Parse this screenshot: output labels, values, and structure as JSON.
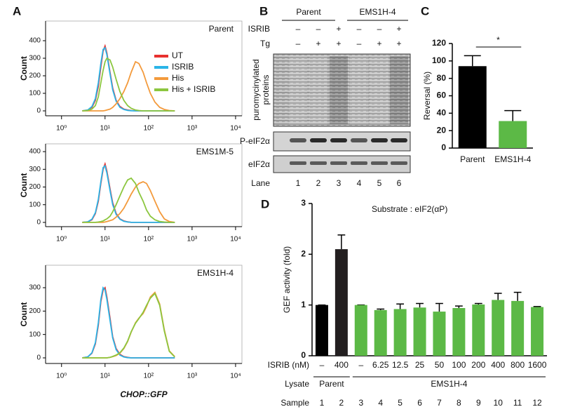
{
  "panels": [
    "A",
    "B",
    "C",
    "D"
  ],
  "chart_data": [
    {
      "type": "line",
      "title": "Parent",
      "ylabel": "Count",
      "xscale": "log",
      "legend": "upper right",
      "x": [
        3,
        4,
        5,
        6,
        7,
        8,
        9,
        10,
        11,
        13,
        15,
        18,
        22,
        27,
        33,
        40,
        50,
        60,
        75,
        90,
        110,
        140,
        180,
        230,
        300,
        400
      ],
      "xlim": [
        0.43,
        14000
      ],
      "xticks": [
        {
          "value": 1,
          "label": "10⁰"
        },
        {
          "value": 10,
          "label": "10¹"
        },
        {
          "value": 100,
          "label": "10²"
        },
        {
          "value": 1000,
          "label": "10³"
        },
        {
          "value": 10000,
          "label": "10⁴"
        }
      ],
      "ylim": [
        -28,
        512
      ],
      "yticks": [
        0,
        100,
        200,
        300,
        400
      ],
      "series": [
        {
          "name": "UT",
          "color": "#e8312f",
          "values": [
            0,
            5,
            20,
            60,
            140,
            250,
            340,
            370,
            330,
            220,
            130,
            60,
            25,
            10,
            5,
            2,
            0,
            0,
            0,
            0,
            0,
            0,
            0,
            0,
            0,
            0
          ]
        },
        {
          "name": "ISRIB",
          "color": "#2bb5e8",
          "values": [
            0,
            5,
            25,
            70,
            160,
            270,
            350,
            360,
            320,
            210,
            120,
            55,
            20,
            8,
            3,
            1,
            0,
            0,
            0,
            0,
            0,
            0,
            0,
            0,
            0,
            0
          ]
        },
        {
          "name": "His",
          "color": "#f39a3c",
          "values": [
            0,
            0,
            0,
            0,
            0,
            0,
            0,
            2,
            5,
            10,
            20,
            40,
            70,
            110,
            160,
            220,
            280,
            270,
            220,
            160,
            100,
            50,
            20,
            8,
            2,
            0
          ]
        },
        {
          "name": "His + ISRIB",
          "color": "#8cc63f",
          "values": [
            0,
            2,
            10,
            30,
            80,
            160,
            230,
            280,
            300,
            290,
            250,
            180,
            110,
            60,
            30,
            15,
            5,
            2,
            0,
            0,
            0,
            0,
            0,
            0,
            0,
            0
          ]
        }
      ]
    },
    {
      "type": "line",
      "title": "EMS1M-5",
      "ylabel": "Count",
      "xscale": "log",
      "x": [
        3,
        4,
        5,
        6,
        7,
        8,
        9,
        10,
        11,
        13,
        15,
        18,
        22,
        27,
        33,
        40,
        50,
        60,
        75,
        90,
        110,
        140,
        180,
        230,
        300,
        400
      ],
      "xlim": [
        0.43,
        14000
      ],
      "xticks": [
        {
          "value": 1,
          "label": "10⁰"
        },
        {
          "value": 10,
          "label": "10¹"
        },
        {
          "value": 100,
          "label": "10²"
        },
        {
          "value": 1000,
          "label": "10³"
        },
        {
          "value": 10000,
          "label": "10⁴"
        }
      ],
      "ylim": [
        -24,
        444
      ],
      "yticks": [
        0,
        100,
        200,
        300,
        400
      ],
      "series": [
        {
          "color": "#e8312f",
          "values": [
            0,
            3,
            15,
            50,
            120,
            220,
            300,
            330,
            290,
            190,
            110,
            50,
            20,
            8,
            3,
            0,
            0,
            0,
            0,
            0,
            0,
            0,
            0,
            0,
            0,
            0
          ]
        },
        {
          "color": "#2bb5e8",
          "values": [
            0,
            3,
            18,
            55,
            130,
            230,
            310,
            320,
            280,
            180,
            100,
            45,
            18,
            6,
            2,
            0,
            0,
            0,
            0,
            0,
            0,
            0,
            0,
            0,
            0,
            0
          ]
        },
        {
          "color": "#f39a3c",
          "values": [
            0,
            0,
            0,
            0,
            0,
            0,
            0,
            2,
            5,
            10,
            15,
            30,
            50,
            80,
            120,
            160,
            200,
            220,
            230,
            220,
            180,
            120,
            60,
            20,
            5,
            0
          ]
        },
        {
          "color": "#8cc63f",
          "values": [
            0,
            0,
            0,
            0,
            2,
            5,
            8,
            15,
            20,
            35,
            60,
            100,
            150,
            200,
            240,
            250,
            220,
            170,
            120,
            70,
            35,
            15,
            5,
            2,
            0,
            0
          ]
        }
      ]
    },
    {
      "type": "line",
      "title": "EMS1H-4",
      "ylabel": "Count",
      "xlabel": "CHOP::GFP",
      "xscale": "log",
      "x": [
        3,
        4,
        5,
        6,
        7,
        8,
        9,
        10,
        11,
        13,
        15,
        18,
        22,
        27,
        33,
        40,
        50,
        60,
        75,
        90,
        110,
        140,
        180,
        230,
        300,
        400
      ],
      "xlim": [
        0.43,
        14000
      ],
      "xticks": [
        {
          "value": 1,
          "label": "10⁰"
        },
        {
          "value": 10,
          "label": "10¹"
        },
        {
          "value": 100,
          "label": "10²"
        },
        {
          "value": 1000,
          "label": "10³"
        },
        {
          "value": 10000,
          "label": "10⁴"
        }
      ],
      "ylim": [
        -24,
        396
      ],
      "yticks": [
        0,
        100,
        200,
        300
      ],
      "series": [
        {
          "color": "#e8312f",
          "values": [
            0,
            4,
            20,
            60,
            140,
            240,
            290,
            300,
            260,
            170,
            90,
            40,
            15,
            5,
            2,
            0,
            0,
            0,
            0,
            0,
            0,
            0,
            0,
            0,
            0,
            0
          ]
        },
        {
          "color": "#2bb5e8",
          "values": [
            0,
            4,
            22,
            65,
            150,
            250,
            300,
            290,
            250,
            160,
            85,
            35,
            12,
            4,
            1,
            0,
            0,
            0,
            0,
            0,
            0,
            0,
            0,
            0,
            0,
            0
          ]
        },
        {
          "color": "#f39a3c",
          "values": [
            0,
            0,
            0,
            0,
            0,
            0,
            0,
            0,
            0,
            2,
            5,
            10,
            20,
            40,
            70,
            110,
            150,
            170,
            190,
            220,
            260,
            280,
            230,
            120,
            30,
            5
          ]
        },
        {
          "color": "#8cc63f",
          "values": [
            0,
            0,
            0,
            0,
            0,
            0,
            0,
            0,
            0,
            2,
            6,
            12,
            22,
            42,
            72,
            112,
            148,
            168,
            195,
            225,
            255,
            275,
            225,
            115,
            28,
            4
          ]
        }
      ]
    },
    {
      "type": "bar",
      "ylabel": "Reversal (%)",
      "categories": [
        "Parent",
        "EMS1H-4"
      ],
      "values": [
        94,
        31
      ],
      "errors": [
        12,
        12
      ],
      "colors": [
        "#000000",
        "#5cb946"
      ],
      "ylim": [
        0,
        120
      ],
      "yticks": [
        0,
        20,
        40,
        60,
        80,
        100,
        120
      ],
      "annotation": "*"
    },
    {
      "type": "bar",
      "title": "Substrate : eIF2(αP)",
      "ylabel": "GEF activity (fold)",
      "categories": [
        1,
        2,
        3,
        4,
        5,
        6,
        7,
        8,
        9,
        10,
        11,
        12
      ],
      "values": [
        1,
        2.1,
        1,
        0.9,
        0.92,
        0.95,
        0.87,
        0.94,
        1.01,
        1.1,
        1.08,
        0.96
      ],
      "errors": [
        0,
        0.28,
        0,
        0.02,
        0.1,
        0.08,
        0.16,
        0.04,
        0.02,
        0.13,
        0.17,
        0.01
      ],
      "colors": [
        "#000000",
        "#231f20",
        "#5cb946",
        "#5cb946",
        "#5cb946",
        "#5cb946",
        "#5cb946",
        "#5cb946",
        "#5cb946",
        "#5cb946",
        "#5cb946",
        "#5cb946"
      ],
      "ylim": [
        0,
        3
      ],
      "yticks": [
        0,
        1,
        2,
        3
      ],
      "row_labels": [
        "ISRIB (nM)",
        "Lysate",
        "Sample"
      ],
      "isrib": [
        "–",
        400,
        "–",
        6.25,
        12.5,
        25,
        50,
        100,
        200,
        400,
        800,
        1600
      ],
      "groups": [
        {
          "label": "Parent",
          "n": 2
        },
        {
          "label": "EMS1H-4",
          "n": 10
        }
      ]
    }
  ],
  "blot": {
    "groups": [
      "Parent",
      "EMS1H-4"
    ],
    "rows": [
      {
        "label": "ISRIB",
        "signs": [
          "–",
          "–",
          "+",
          "–",
          "–",
          "+"
        ]
      },
      {
        "label": "Tg",
        "signs": [
          "–",
          "+",
          "+",
          "–",
          "+",
          "+"
        ]
      }
    ],
    "blots": [
      [
        "puromycinylated",
        "proteins"
      ],
      [
        "P-eIF2α"
      ],
      [
        "eIF2α"
      ]
    ],
    "lane_label": "Lane",
    "lanes": [
      1,
      2,
      3,
      4,
      5,
      6
    ]
  }
}
